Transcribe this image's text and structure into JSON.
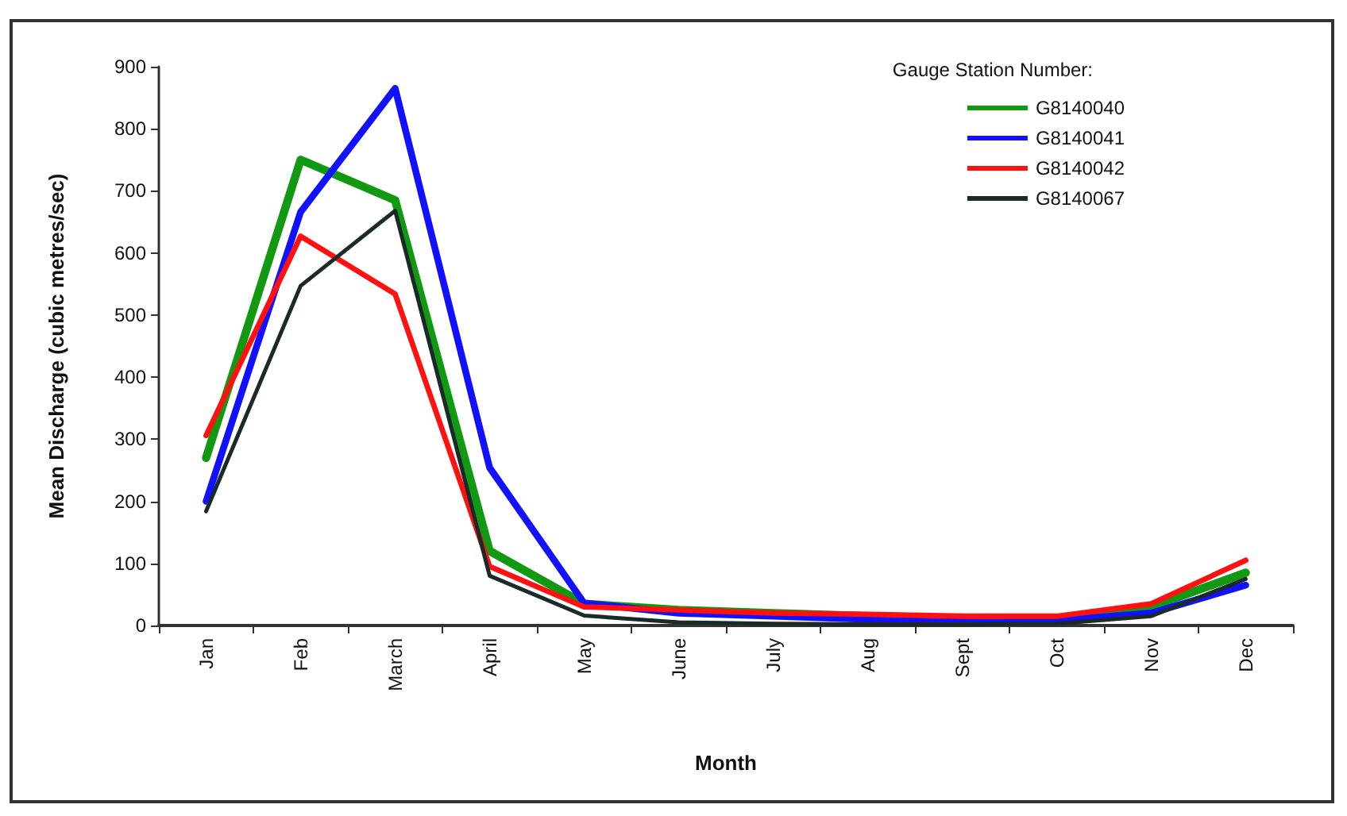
{
  "chart_data": {
    "type": "line",
    "xlabel": "Month",
    "ylabel": "Mean Discharge (cubic metres/sec)",
    "legend_title": "Gauge Station Number:",
    "legend": "top right",
    "grid": false,
    "marker": "none",
    "line_style": "solid",
    "categories": [
      "Jan",
      "Feb",
      "March",
      "April",
      "May",
      "June",
      "July",
      "Aug",
      "Sept",
      "Oct",
      "Nov",
      "Dec"
    ],
    "ylim": [
      0,
      900
    ],
    "yticks": [
      0,
      100,
      200,
      300,
      400,
      500,
      600,
      700,
      800,
      900
    ],
    "series": [
      {
        "name": "G8140040",
        "color": "#119911",
        "values": [
          270,
          750,
          685,
          120,
          35,
          25,
          20,
          15,
          12,
          12,
          30,
          85
        ]
      },
      {
        "name": "G8140041",
        "color": "#1111ff",
        "values": [
          200,
          666,
          865,
          254,
          36,
          20,
          15,
          10,
          8,
          8,
          20,
          65
        ]
      },
      {
        "name": "G8140042",
        "color": "#ff1111",
        "values": [
          306,
          627,
          534,
          95,
          30,
          25,
          20,
          18,
          15,
          15,
          35,
          105
        ]
      },
      {
        "name": "G8140067",
        "color": "#1a2a28",
        "values": [
          184,
          547,
          668,
          80,
          16,
          5,
          3,
          2,
          2,
          3,
          15,
          75
        ]
      }
    ]
  }
}
